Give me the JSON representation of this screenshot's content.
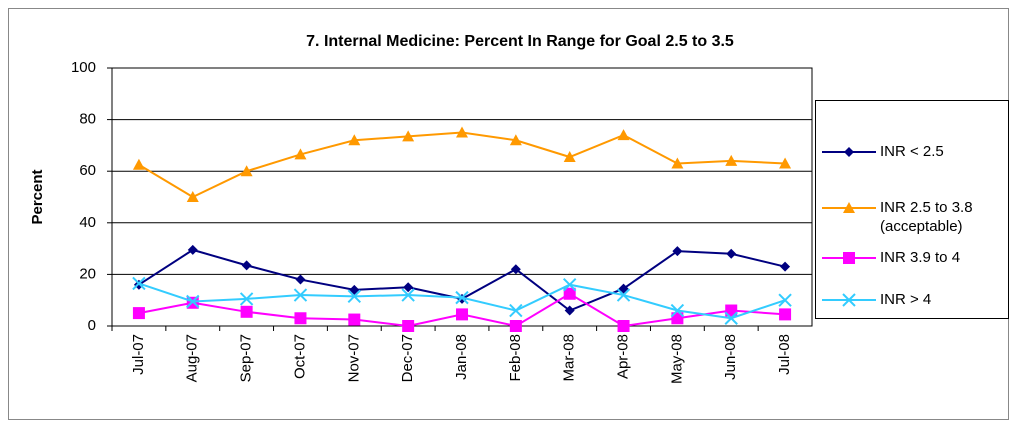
{
  "chart_data": {
    "type": "line",
    "title": "7. Internal Medicine: Percent In Range for Goal 2.5 to 3.5",
    "y_label": "Percent",
    "categories": [
      "Jul-07",
      "Aug-07",
      "Sep-07",
      "Oct-07",
      "Nov-07",
      "Dec-07",
      "Jan-08",
      "Feb-08",
      "Mar-08",
      "Apr-08",
      "May-08",
      "Jun-08",
      "Jul-08"
    ],
    "series": [
      {
        "name": "INR < 2.5",
        "color": "#000080",
        "marker": "diamond",
        "values": [
          16,
          29.5,
          23.5,
          18,
          14,
          15,
          10.5,
          22,
          6,
          14.5,
          29,
          28,
          23
        ]
      },
      {
        "name": "INR 2.5 to 3.8 (acceptable)",
        "color": "#FF9900",
        "marker": "triangle",
        "values": [
          62.5,
          50,
          60,
          66.5,
          72,
          73.5,
          75,
          72,
          65.5,
          74,
          63,
          64,
          63
        ]
      },
      {
        "name": "INR 3.9 to 4",
        "color": "#FF00FF",
        "marker": "square",
        "values": [
          5,
          9,
          5.5,
          3,
          2.5,
          0,
          4.5,
          0,
          12.5,
          0,
          3,
          6,
          4.5
        ]
      },
      {
        "name": "INR > 4",
        "color": "#33CCFF",
        "marker": "x",
        "values": [
          16.5,
          9.5,
          10.5,
          12,
          11.5,
          12,
          11,
          6,
          16,
          12,
          6,
          3,
          10
        ]
      }
    ],
    "ylim": [
      0,
      100
    ],
    "yticks": [
      0,
      20,
      40,
      60,
      80,
      100
    ],
    "grid": true,
    "legend": "right"
  }
}
